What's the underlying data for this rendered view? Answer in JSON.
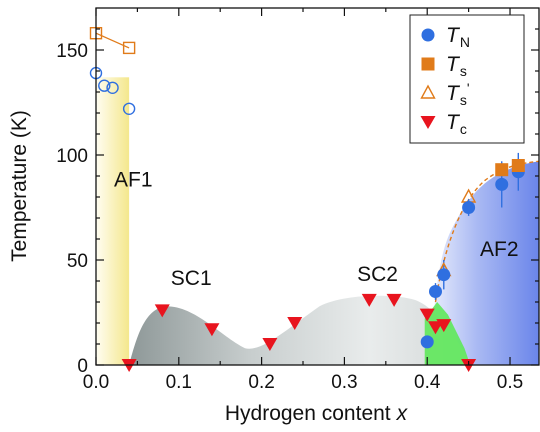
{
  "chart_data": {
    "type": "scatter",
    "title": "",
    "xlabel": "Hydrogen content",
    "xlabel_var": "x",
    "ylabel": "Temperature (K)",
    "xlim": [
      0.0,
      0.535
    ],
    "ylim": [
      0,
      170
    ],
    "x_ticks": [
      0.0,
      0.1,
      0.2,
      0.3,
      0.4,
      0.5
    ],
    "x_tick_labels": [
      "0.0",
      "0.1",
      "0.2",
      "0.3",
      "0.4",
      "0.5"
    ],
    "y_ticks": [
      0,
      50,
      100,
      150
    ],
    "y_tick_labels": [
      "0",
      "50",
      "100",
      "150"
    ],
    "grid": false,
    "legend_position": "top-right",
    "legend": [
      {
        "key": "TN",
        "main": "T",
        "sub": "N",
        "prime": ""
      },
      {
        "key": "Ts",
        "main": "T",
        "sub": "s",
        "prime": ""
      },
      {
        "key": "Ts_prime",
        "main": "T",
        "sub": "s",
        "prime": "'"
      },
      {
        "key": "Tc",
        "main": "T",
        "sub": "c",
        "prime": ""
      }
    ],
    "colors": {
      "blue": "#2f6fe0",
      "orange": "#e07b1a",
      "red": "#e8141e",
      "af1_fill": "#f4e78c",
      "af2_fill": "#7b93ee",
      "sc_fill": "#9aa3a3",
      "green": "#5ee85a"
    },
    "region_labels": [
      {
        "text": "AF1",
        "x": 0.045,
        "y": 85
      },
      {
        "text": "SC1",
        "x": 0.115,
        "y": 38
      },
      {
        "text": "SC2",
        "x": 0.34,
        "y": 40
      },
      {
        "text": "AF2",
        "x": 0.487,
        "y": 52
      }
    ],
    "series": [
      {
        "name": "TN",
        "marker": "circle-filled",
        "points": [
          {
            "x": 0.4,
            "y": 11,
            "err": 0
          },
          {
            "x": 0.41,
            "y": 35,
            "err": 4
          },
          {
            "x": 0.42,
            "y": 43,
            "err": 7
          },
          {
            "x": 0.45,
            "y": 75,
            "err": 4
          },
          {
            "x": 0.49,
            "y": 86,
            "err": 11
          },
          {
            "x": 0.51,
            "y": 92,
            "err": 9
          }
        ]
      },
      {
        "name": "TN_open",
        "marker": "circle-open",
        "points": [
          {
            "x": 0.0,
            "y": 139
          },
          {
            "x": 0.01,
            "y": 133
          },
          {
            "x": 0.02,
            "y": 132
          },
          {
            "x": 0.04,
            "y": 122
          }
        ]
      },
      {
        "name": "Ts",
        "marker": "square-filled",
        "points": [
          {
            "x": 0.49,
            "y": 93
          },
          {
            "x": 0.51,
            "y": 95
          }
        ]
      },
      {
        "name": "Ts_open",
        "marker": "square-open",
        "points": [
          {
            "x": 0.0,
            "y": 158
          },
          {
            "x": 0.04,
            "y": 151
          }
        ]
      },
      {
        "name": "Ts_prime",
        "marker": "triangle-up-open",
        "points": [
          {
            "x": 0.42,
            "y": 45
          },
          {
            "x": 0.45,
            "y": 80
          }
        ]
      },
      {
        "name": "Tc",
        "marker": "triangle-down-filled",
        "points": [
          {
            "x": 0.04,
            "y": 0
          },
          {
            "x": 0.08,
            "y": 26
          },
          {
            "x": 0.14,
            "y": 17
          },
          {
            "x": 0.21,
            "y": 10
          },
          {
            "x": 0.24,
            "y": 20
          },
          {
            "x": 0.33,
            "y": 31
          },
          {
            "x": 0.36,
            "y": 31
          },
          {
            "x": 0.4,
            "y": 24
          },
          {
            "x": 0.41,
            "y": 18
          },
          {
            "x": 0.42,
            "y": 19
          },
          {
            "x": 0.45,
            "y": 0
          }
        ]
      }
    ]
  }
}
